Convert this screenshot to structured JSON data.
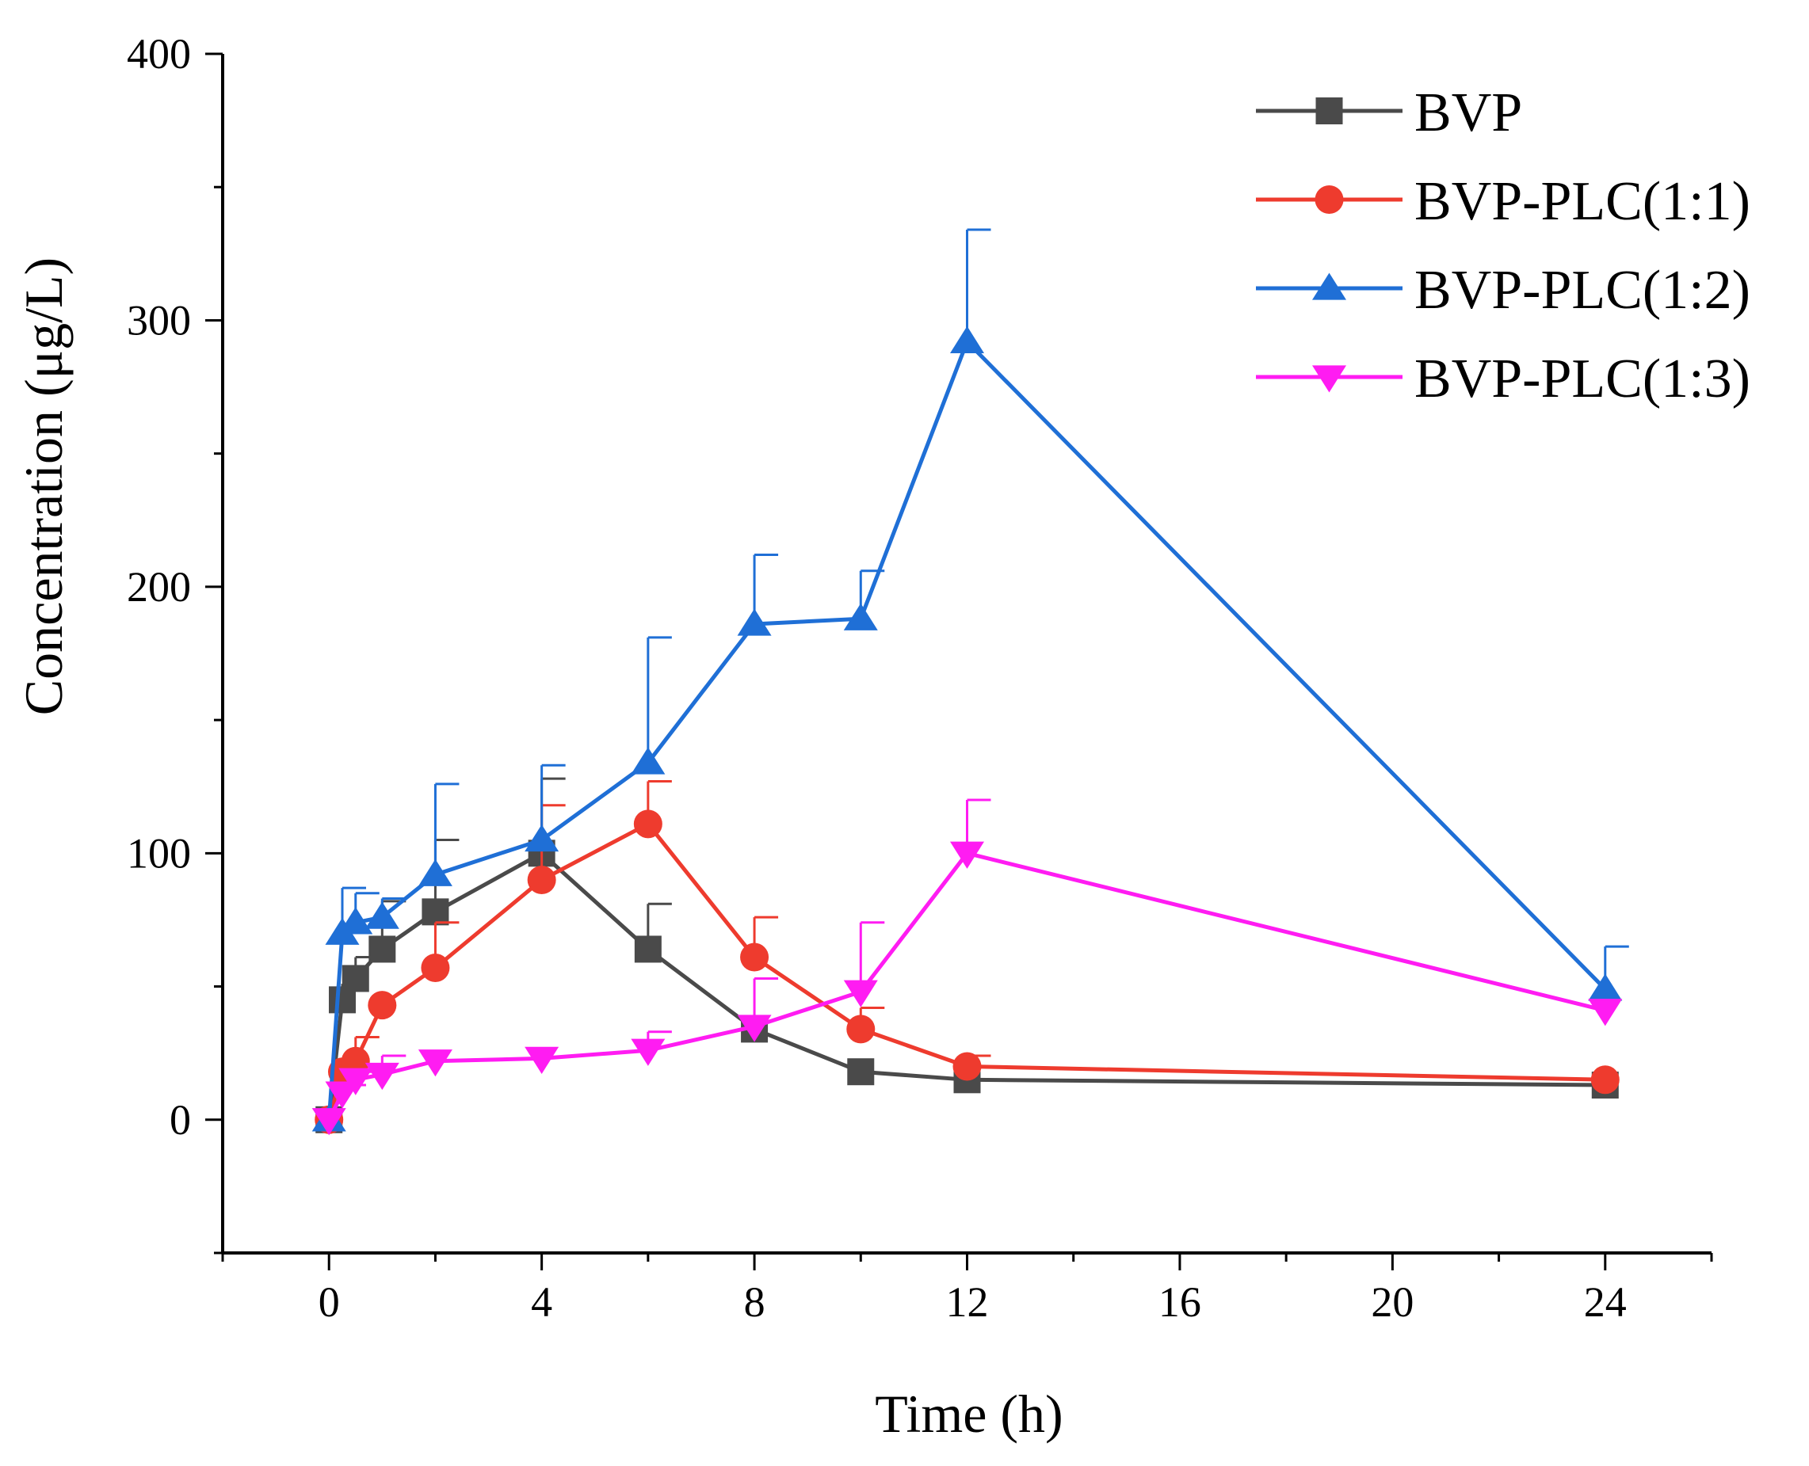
{
  "chart_data": {
    "type": "line",
    "xlabel": "Time (h)",
    "ylabel": "Concentration (μg/L)",
    "xlim": [
      -2,
      26
    ],
    "ylim": [
      -50,
      400
    ],
    "xticks": [
      0,
      4,
      8,
      12,
      16,
      20,
      24
    ],
    "yticks": [
      0,
      100,
      200,
      300,
      400
    ],
    "x_minor_step": 2,
    "y_minor_step": 50,
    "legend_position": "top-right",
    "grid": false,
    "series": [
      {
        "name": "BVP",
        "color": "#4a4a4a",
        "marker": "square",
        "x": [
          0,
          0.25,
          0.5,
          1,
          2,
          4,
          6,
          8,
          10,
          12,
          24
        ],
        "y": [
          0,
          45,
          53,
          64,
          78,
          100,
          64,
          34,
          18,
          15,
          13
        ],
        "error": [
          0,
          6,
          8,
          18,
          27,
          28,
          17,
          0,
          0,
          0,
          0
        ]
      },
      {
        "name": "BVP-PLC(1:1)",
        "color": "#ee3b2e",
        "marker": "circle",
        "x": [
          0,
          0.25,
          0.5,
          1,
          2,
          4,
          6,
          8,
          10,
          12,
          24
        ],
        "y": [
          0,
          18,
          22,
          43,
          57,
          90,
          111,
          61,
          34,
          20,
          15
        ],
        "error": [
          0,
          4,
          9,
          0,
          17,
          28,
          16,
          15,
          8,
          4,
          0
        ]
      },
      {
        "name": "BVP-PLC(1:2)",
        "color": "#1f6fd6",
        "marker": "triangle-up",
        "x": [
          0,
          0.25,
          0.5,
          1,
          2,
          4,
          6,
          8,
          10,
          12,
          24
        ],
        "y": [
          0,
          70,
          74,
          76,
          92,
          105,
          134,
          186,
          188,
          292,
          49
        ],
        "error": [
          0,
          17,
          11,
          7,
          34,
          28,
          47,
          26,
          18,
          42,
          16
        ]
      },
      {
        "name": "BVP-PLC(1:3)",
        "color": "#ff1cf2",
        "marker": "triangle-down",
        "x": [
          0,
          0.25,
          0.5,
          1,
          2,
          4,
          6,
          8,
          10,
          12,
          24
        ],
        "y": [
          0,
          10,
          15,
          17,
          22,
          23,
          26,
          35,
          48,
          100,
          41
        ],
        "error": [
          0,
          3,
          3,
          7,
          0,
          0,
          7,
          18,
          26,
          20,
          0
        ]
      }
    ]
  }
}
